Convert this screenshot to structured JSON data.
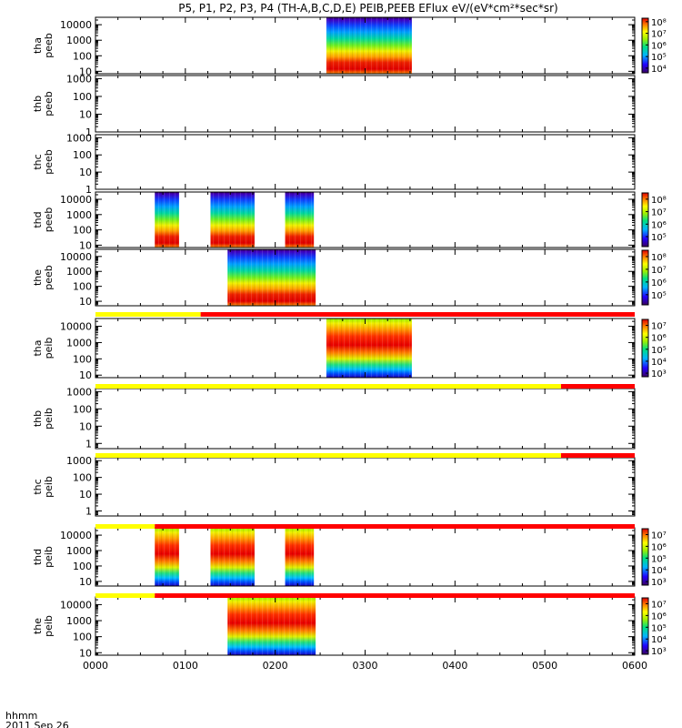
{
  "title": "P5, P1, P2, P3, P4 (TH-A,B,C,D,E) PEIB,PEEB EFlux eV/(eV*cm²*sec*sr)",
  "time_axis": {
    "ticks": [
      "0000",
      "0100",
      "0200",
      "0300",
      "0400",
      "0500",
      "0600"
    ],
    "range_hours": [
      0,
      6
    ],
    "corner_label": "hhmm",
    "date_label": "2011 Sep 26"
  },
  "chart_data": [
    {
      "type": "heatmap",
      "panel": "tha peeb",
      "ylabel_lines": [
        "tha",
        "peeb"
      ],
      "ylim": [
        7,
        30000
      ],
      "yscale": "log",
      "yticks": [
        "10",
        "100",
        "1000",
        "10000"
      ],
      "colorbar": {
        "labels": [
          "10⁴",
          "10⁵",
          "10⁶",
          "10⁷",
          "10⁸"
        ],
        "log_range": [
          3.6,
          8.3
        ]
      },
      "data_blocks_hours": [
        [
          2.57,
          3.52
        ]
      ],
      "spectrum_profile": "electron"
    },
    {
      "type": "heatmap",
      "panel": "thb peeb",
      "ylabel_lines": [
        "thb",
        "peeb"
      ],
      "ylim": [
        1,
        1500
      ],
      "yscale": "log",
      "yticks": [
        "1",
        "10",
        "100",
        "1000"
      ],
      "data_blocks_hours": []
    },
    {
      "type": "heatmap",
      "panel": "thc peeb",
      "ylabel_lines": [
        "thc",
        "peeb"
      ],
      "ylim": [
        1,
        1500
      ],
      "yscale": "log",
      "yticks": [
        "1",
        "10",
        "100",
        "1000"
      ],
      "data_blocks_hours": []
    },
    {
      "type": "heatmap",
      "panel": "thd peeb",
      "ylabel_lines": [
        "thd",
        "peeb"
      ],
      "ylim": [
        7,
        30000
      ],
      "yscale": "log",
      "yticks": [
        "10",
        "100",
        "1000",
        "10000"
      ],
      "colorbar": {
        "labels": [
          "10⁵",
          "10⁶",
          "10⁷",
          "10⁸"
        ],
        "log_range": [
          4.2,
          8.5
        ]
      },
      "data_blocks_hours": [
        [
          0.66,
          0.93
        ],
        [
          1.28,
          1.77
        ],
        [
          2.11,
          2.43
        ]
      ],
      "spectrum_profile": "electron"
    },
    {
      "type": "heatmap",
      "panel": "the peeb",
      "ylabel_lines": [
        "the",
        "peeb"
      ],
      "ylim": [
        5,
        30000
      ],
      "yscale": "log",
      "yticks": [
        "10",
        "100",
        "1000",
        "10000"
      ],
      "colorbar": {
        "labels": [
          "10⁵",
          "10⁶",
          "10⁷",
          "10⁸"
        ],
        "log_range": [
          4.2,
          8.5
        ]
      },
      "data_blocks_hours": [
        [
          1.47,
          2.45
        ]
      ],
      "spectrum_profile": "electron"
    },
    {
      "type": "heatmap",
      "panel": "tha peib",
      "ylabel_lines": [
        "tha",
        "peib"
      ],
      "ylim": [
        7,
        30000
      ],
      "yscale": "log",
      "yticks": [
        "10",
        "100",
        "1000",
        "10000"
      ],
      "colorbar": {
        "labels": [
          "10³",
          "10⁴",
          "10⁵",
          "10⁶",
          "10⁷"
        ],
        "log_range": [
          2.7,
          7.5
        ]
      },
      "data_blocks_hours": [
        [
          2.57,
          3.52
        ]
      ],
      "spectrum_profile": "ion"
    },
    {
      "type": "heatmap",
      "panel": "thb peib",
      "ylabel_lines": [
        "thb",
        "peib"
      ],
      "ylim": [
        0.5,
        1500
      ],
      "yscale": "log",
      "yticks": [
        "1",
        "10",
        "100",
        "1000"
      ],
      "data_blocks_hours": []
    },
    {
      "type": "heatmap",
      "panel": "thc peib",
      "ylabel_lines": [
        "thc",
        "peib"
      ],
      "ylim": [
        0.5,
        1500
      ],
      "yscale": "log",
      "yticks": [
        "1",
        "10",
        "100",
        "1000"
      ],
      "data_blocks_hours": []
    },
    {
      "type": "heatmap",
      "panel": "thd peib",
      "ylabel_lines": [
        "thd",
        "peib"
      ],
      "ylim": [
        5,
        30000
      ],
      "yscale": "log",
      "yticks": [
        "10",
        "100",
        "1000",
        "10000"
      ],
      "colorbar": {
        "labels": [
          "10³",
          "10⁴",
          "10⁵",
          "10⁶",
          "10⁷"
        ],
        "log_range": [
          2.7,
          7.5
        ]
      },
      "data_blocks_hours": [
        [
          0.66,
          0.93
        ],
        [
          1.28,
          1.77
        ],
        [
          2.11,
          2.43
        ]
      ],
      "spectrum_profile": "ion"
    },
    {
      "type": "heatmap",
      "panel": "the peib",
      "ylabel_lines": [
        "the",
        "peib"
      ],
      "ylim": [
        7,
        30000
      ],
      "yscale": "log",
      "yticks": [
        "10",
        "100",
        "1000",
        "10000"
      ],
      "colorbar": {
        "labels": [
          "10³",
          "10⁴",
          "10⁵",
          "10⁶",
          "10⁷"
        ],
        "log_range": [
          2.7,
          7.5
        ]
      },
      "data_blocks_hours": [
        [
          1.47,
          2.45
        ]
      ],
      "spectrum_profile": "ion"
    }
  ],
  "mode_bars": [
    {
      "after_panel": "the peeb",
      "segments": [
        {
          "from": 0,
          "to": 1.17,
          "color": "#ffff00"
        },
        {
          "from": 1.17,
          "to": 6,
          "color": "#ff0000"
        }
      ]
    },
    {
      "after_panel": "tha peib",
      "segments": [
        {
          "from": 0,
          "to": 5.18,
          "color": "#ffff00"
        },
        {
          "from": 5.18,
          "to": 6,
          "color": "#ff0000"
        }
      ]
    },
    {
      "after_panel": "thb peib",
      "segments": [
        {
          "from": 0,
          "to": 5.18,
          "color": "#ffff00"
        },
        {
          "from": 5.18,
          "to": 6,
          "color": "#ff0000"
        }
      ]
    },
    {
      "after_panel": "thc peib",
      "segments": [
        {
          "from": 0,
          "to": 0.66,
          "color": "#ffff00"
        },
        {
          "from": 0.66,
          "to": 6,
          "color": "#ff0000"
        }
      ]
    },
    {
      "after_panel": "thd peib",
      "segments": [
        {
          "from": 0,
          "to": 0.66,
          "color": "#ffff00"
        },
        {
          "from": 0.66,
          "to": 6,
          "color": "#ff0000"
        }
      ]
    }
  ]
}
